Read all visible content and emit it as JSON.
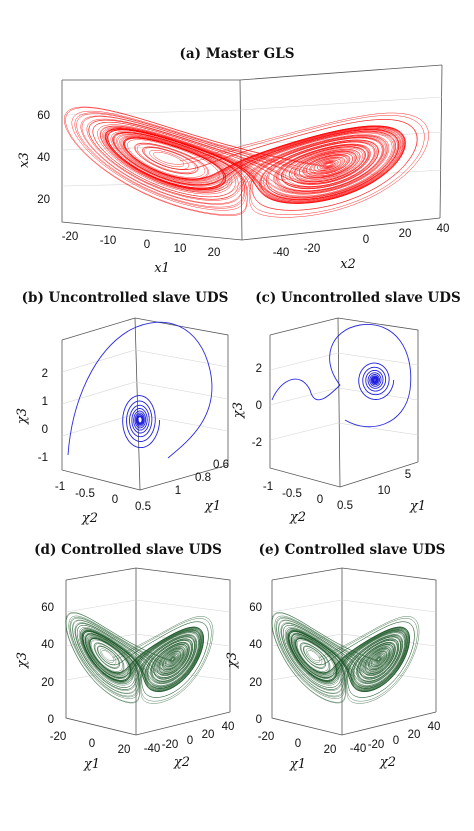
{
  "colors": {
    "master": "#ff0000",
    "uncontrolled": "#1414dc",
    "controlled": "#1e5a2a"
  },
  "chart_data": [
    {
      "id": "a",
      "type": "line",
      "title": "(a) Master GLS",
      "xlabel": "x1",
      "ylabel": "x2",
      "zlabel": "x3",
      "x_ticks": [
        "-20",
        "-10",
        "0",
        "10",
        "20"
      ],
      "y_ticks": [
        "-40",
        "-20",
        "0",
        "20",
        "40"
      ],
      "z_ticks": [
        "20",
        "40",
        "60"
      ],
      "series": [
        {
          "attractor": "two-lobe butterfly",
          "lobe_centers_x": [
            -8.5,
            8.5
          ],
          "lobe_center_z": 27,
          "color": "#ff0000"
        }
      ]
    },
    {
      "id": "b",
      "type": "line",
      "title": "(b) Uncontrolled slave UDS",
      "xlabel": "χ2",
      "ylabel": "χ1",
      "zlabel": "χ3",
      "x_ticks": [
        "-1",
        "-0.5",
        "0",
        "0.5"
      ],
      "y_ticks": [
        "0.6",
        "0.8",
        "1"
      ],
      "z_ticks": [
        "-1",
        "0",
        "1",
        "2"
      ],
      "series": [
        {
          "shape": "spiral converging to a focus",
          "focus_z": 0.3,
          "color": "#1414dc"
        }
      ]
    },
    {
      "id": "c",
      "type": "line",
      "title": "(c) Uncontrolled slave UDS",
      "xlabel": "χ2",
      "ylabel": "χ1",
      "zlabel": "χ3",
      "x_ticks": [
        "-1",
        "-0.5",
        "0",
        "0.5"
      ],
      "y_ticks": [
        "5",
        "10"
      ],
      "z_ticks": [
        "-2",
        "0",
        "2"
      ],
      "series": [
        {
          "shape": "spiral converging to a focus",
          "focus_z": 1.5,
          "color": "#1414dc"
        }
      ]
    },
    {
      "id": "d",
      "type": "line",
      "title": "(d) Controlled slave UDS",
      "xlabel": "χ1",
      "ylabel": "χ2",
      "zlabel": "χ3",
      "x_ticks": [
        "-20",
        "0",
        "20"
      ],
      "y_ticks": [
        "-40",
        "-20",
        "0",
        "20",
        "40"
      ],
      "z_ticks": [
        "0",
        "20",
        "40",
        "60"
      ],
      "series": [
        {
          "attractor": "two-lobe butterfly (synchronized)",
          "color": "#1e5a2a"
        }
      ]
    },
    {
      "id": "e",
      "type": "line",
      "title": "(e) Controlled slave UDS",
      "xlabel": "χ1",
      "ylabel": "χ2",
      "zlabel": "χ3",
      "x_ticks": [
        "-20",
        "0",
        "20"
      ],
      "y_ticks": [
        "-40",
        "-20",
        "0",
        "20",
        "40"
      ],
      "z_ticks": [
        "0",
        "20",
        "40",
        "60"
      ],
      "series": [
        {
          "attractor": "two-lobe butterfly (synchronized)",
          "color": "#1e5a2a"
        }
      ]
    }
  ]
}
